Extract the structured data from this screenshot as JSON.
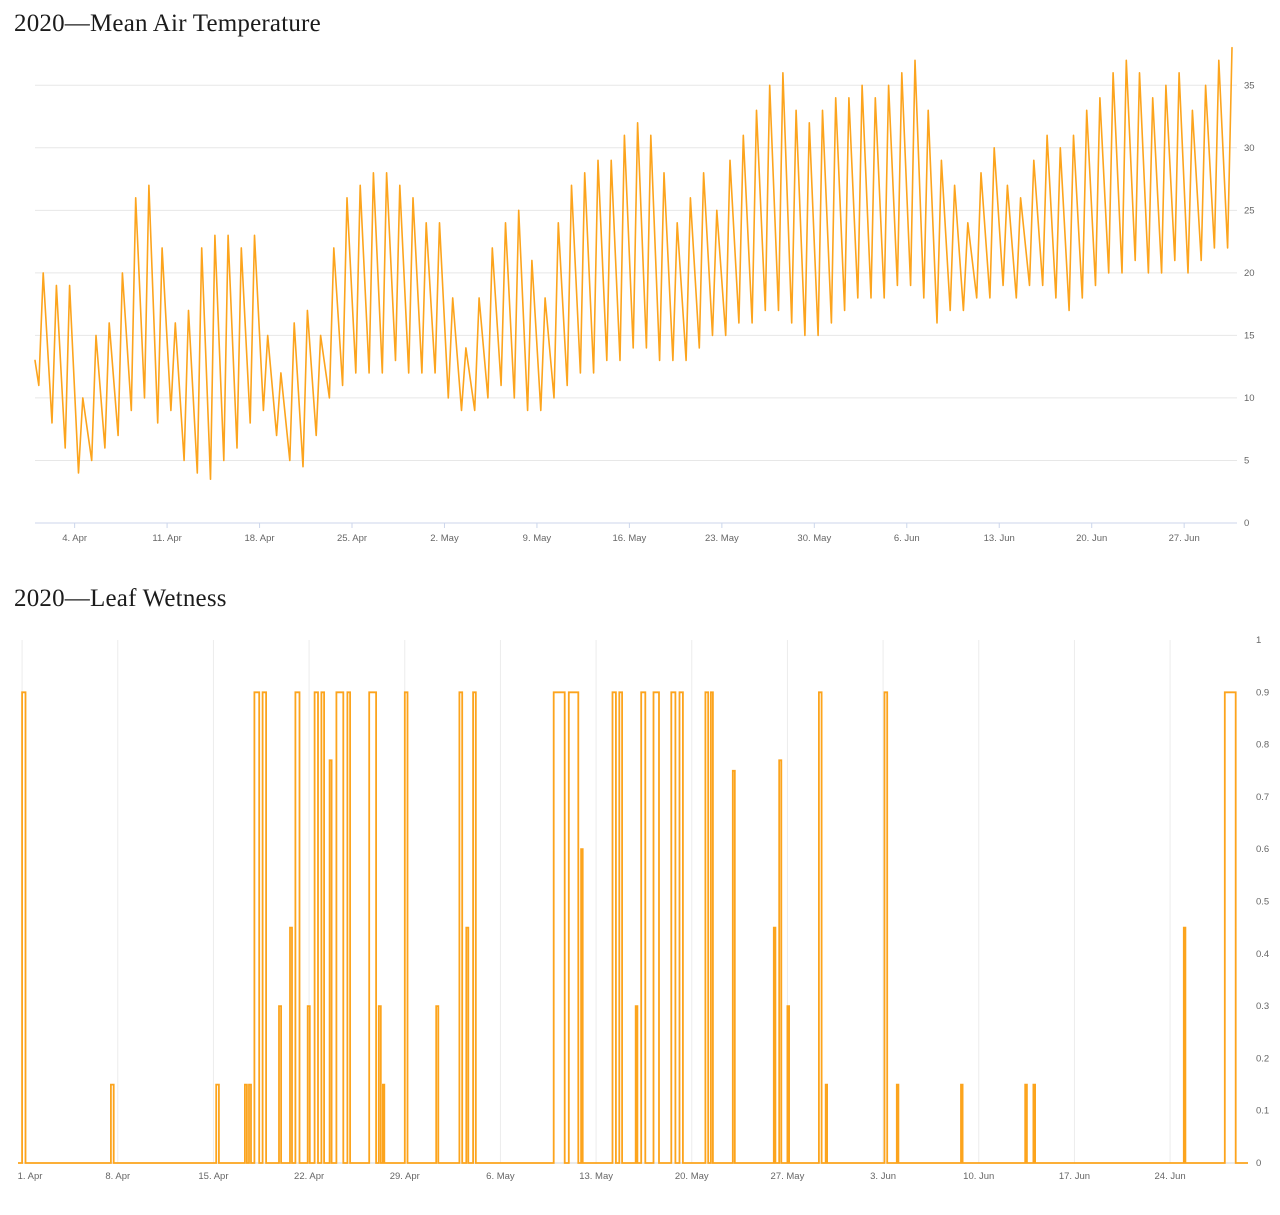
{
  "page": {
    "title1": "2020—Mean Air Temperature",
    "title2": "2020—Leaf Wetness"
  },
  "colors": {
    "series_orange": "#fca41d",
    "grid": "#e7e7e7",
    "grid_vertical": "#ececec",
    "axis_line": "#ccd6eb",
    "axis_line_light": "#d6d6d6",
    "tick_text": "#666666"
  },
  "chart_data": [
    {
      "type": "line",
      "title": "2020—Mean Air Temperature",
      "xlabel": "",
      "ylabel": "",
      "ylim": [
        0,
        37.5
      ],
      "yticks": [
        0,
        5,
        10,
        15,
        20,
        25,
        30,
        35
      ],
      "grid": "horizontal",
      "legend": "none",
      "x_unit": "days from 1 Apr 2020",
      "xlim": [
        0,
        91
      ],
      "xticks": [
        {
          "day": 3,
          "label": "4. Apr"
        },
        {
          "day": 10,
          "label": "11. Apr"
        },
        {
          "day": 17,
          "label": "18. Apr"
        },
        {
          "day": 24,
          "label": "25. Apr"
        },
        {
          "day": 31,
          "label": "2. May"
        },
        {
          "day": 38,
          "label": "9. May"
        },
        {
          "day": 45,
          "label": "16. May"
        },
        {
          "day": 52,
          "label": "23. May"
        },
        {
          "day": 59,
          "label": "30. May"
        },
        {
          "day": 66,
          "label": "6. Jun"
        },
        {
          "day": 73,
          "label": "13. Jun"
        },
        {
          "day": 80,
          "label": "20. Jun"
        },
        {
          "day": 87,
          "label": "27. Jun"
        }
      ],
      "series": [
        {
          "name": "Mean Air Temperature",
          "daily_min": [
            11,
            8,
            6,
            4,
            5,
            6,
            7,
            9,
            10,
            8,
            9,
            5,
            4,
            3.5,
            5,
            6,
            8,
            9,
            7,
            5,
            4.5,
            7,
            10,
            11,
            12,
            12,
            12,
            13,
            12,
            12,
            12,
            10,
            9,
            9,
            10,
            11,
            10,
            9,
            9,
            10,
            11,
            12,
            12,
            13,
            13,
            14,
            14,
            13,
            13,
            13,
            14,
            15,
            15,
            16,
            16,
            17,
            17,
            16,
            15,
            15,
            16,
            17,
            18,
            18,
            18,
            19,
            19,
            18,
            16,
            17,
            17,
            18,
            18,
            19,
            18,
            19,
            19,
            18,
            17,
            18,
            19,
            20,
            20,
            21,
            20,
            20,
            21,
            20,
            21,
            22,
            22
          ],
          "daily_max": [
            20,
            19,
            19,
            10,
            15,
            16,
            20,
            26,
            27,
            22,
            16,
            17,
            22,
            23,
            23,
            22,
            23,
            15,
            12,
            16,
            17,
            15,
            22,
            26,
            27,
            28,
            28,
            27,
            26,
            24,
            24,
            18,
            14,
            18,
            22,
            24,
            25,
            21,
            18,
            24,
            27,
            28,
            29,
            29,
            31,
            32,
            31,
            28,
            24,
            26,
            28,
            25,
            29,
            31,
            33,
            35,
            36,
            33,
            32,
            33,
            34,
            34,
            35,
            34,
            35,
            36,
            37,
            33,
            29,
            27,
            24,
            28,
            30,
            27,
            26,
            29,
            31,
            30,
            31,
            33,
            34,
            36,
            37,
            36,
            34,
            35,
            36,
            33,
            35,
            37,
            38
          ],
          "start_value": 13
        }
      ]
    },
    {
      "type": "line",
      "title": "2020—Leaf Wetness",
      "xlabel": "",
      "ylabel": "",
      "ylim": [
        0,
        1
      ],
      "yticks": [
        0,
        0.1,
        0.2,
        0.3,
        0.4,
        0.5,
        0.6,
        0.7,
        0.8,
        0.9,
        1
      ],
      "grid": "vertical",
      "legend": "none",
      "x_unit": "days from 1 Apr 2020",
      "xlim": [
        -0.3,
        89.7
      ],
      "xticks": [
        {
          "day": 0,
          "label": "1. Apr"
        },
        {
          "day": 7,
          "label": "8. Apr"
        },
        {
          "day": 14,
          "label": "15. Apr"
        },
        {
          "day": 21,
          "label": "22. Apr"
        },
        {
          "day": 28,
          "label": "29. Apr"
        },
        {
          "day": 35,
          "label": "6. May"
        },
        {
          "day": 42,
          "label": "13. May"
        },
        {
          "day": 49,
          "label": "20. May"
        },
        {
          "day": 56,
          "label": "27. May"
        },
        {
          "day": 63,
          "label": "3. Jun"
        },
        {
          "day": 70,
          "label": "10. Jun"
        },
        {
          "day": 77,
          "label": "17. Jun"
        },
        {
          "day": 84,
          "label": "24. Jun"
        }
      ],
      "series": [
        {
          "name": "Leaf Wetness",
          "baseline": 0,
          "pulse_events": [
            [
              0.0,
              0.25,
              0.9
            ],
            [
              6.5,
              0.2,
              0.15
            ],
            [
              14.2,
              0.2,
              0.15
            ],
            [
              16.3,
              0.15,
              0.15
            ],
            [
              16.6,
              0.15,
              0.15
            ],
            [
              17.0,
              0.35,
              0.9
            ],
            [
              17.6,
              0.25,
              0.9
            ],
            [
              18.8,
              0.15,
              0.3
            ],
            [
              19.6,
              0.15,
              0.45
            ],
            [
              20.0,
              0.3,
              0.9
            ],
            [
              20.9,
              0.15,
              0.3
            ],
            [
              21.4,
              0.25,
              0.9
            ],
            [
              21.9,
              0.2,
              0.9
            ],
            [
              22.5,
              0.15,
              0.77
            ],
            [
              23.0,
              0.5,
              0.9
            ],
            [
              23.8,
              0.2,
              0.9
            ],
            [
              25.4,
              0.5,
              0.9
            ],
            [
              26.1,
              0.15,
              0.3
            ],
            [
              26.4,
              0.1,
              0.15
            ],
            [
              28.0,
              0.2,
              0.9
            ],
            [
              30.3,
              0.15,
              0.3
            ],
            [
              32.0,
              0.2,
              0.9
            ],
            [
              32.5,
              0.15,
              0.45
            ],
            [
              33.0,
              0.2,
              0.9
            ],
            [
              38.9,
              0.8,
              0.9
            ],
            [
              40.0,
              0.7,
              0.9
            ],
            [
              40.9,
              0.12,
              0.6
            ],
            [
              43.2,
              0.25,
              0.9
            ],
            [
              43.7,
              0.2,
              0.9
            ],
            [
              44.9,
              0.12,
              0.3
            ],
            [
              45.3,
              0.3,
              0.9
            ],
            [
              46.2,
              0.4,
              0.9
            ],
            [
              47.5,
              0.3,
              0.9
            ],
            [
              48.1,
              0.25,
              0.9
            ],
            [
              50.0,
              0.2,
              0.9
            ],
            [
              50.4,
              0.15,
              0.9
            ],
            [
              52.0,
              0.15,
              0.75
            ],
            [
              55.0,
              0.12,
              0.45
            ],
            [
              55.4,
              0.15,
              0.77
            ],
            [
              56.0,
              0.12,
              0.3
            ],
            [
              58.3,
              0.2,
              0.9
            ],
            [
              58.8,
              0.1,
              0.15
            ],
            [
              63.1,
              0.2,
              0.9
            ],
            [
              64.0,
              0.12,
              0.15
            ],
            [
              68.7,
              0.12,
              0.15
            ],
            [
              73.4,
              0.12,
              0.15
            ],
            [
              74.0,
              0.12,
              0.15
            ],
            [
              85.0,
              0.12,
              0.45
            ],
            [
              88.0,
              0.8,
              0.9
            ]
          ]
        }
      ]
    }
  ]
}
